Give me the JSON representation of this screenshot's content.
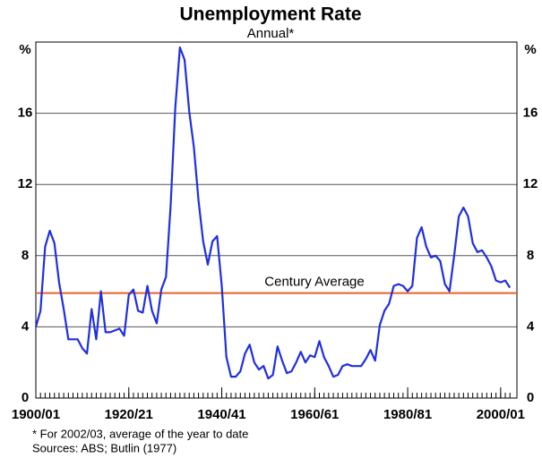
{
  "chart_data": {
    "type": "line",
    "title": "Unemployment Rate",
    "subtitle": "Annual*",
    "y_unit": "%",
    "footnotes": [
      "* For 2002/03, average of the year to date",
      "Sources: ABS; Butlin (1977)"
    ],
    "x": [
      1900,
      1901,
      1902,
      1903,
      1904,
      1905,
      1906,
      1907,
      1908,
      1909,
      1910,
      1911,
      1912,
      1913,
      1914,
      1915,
      1916,
      1917,
      1918,
      1919,
      1920,
      1921,
      1922,
      1923,
      1924,
      1925,
      1926,
      1927,
      1928,
      1929,
      1930,
      1931,
      1932,
      1933,
      1934,
      1935,
      1936,
      1937,
      1938,
      1939,
      1940,
      1941,
      1942,
      1943,
      1944,
      1945,
      1946,
      1947,
      1948,
      1949,
      1950,
      1951,
      1952,
      1953,
      1954,
      1955,
      1956,
      1957,
      1958,
      1959,
      1960,
      1961,
      1962,
      1963,
      1964,
      1965,
      1966,
      1967,
      1968,
      1969,
      1970,
      1971,
      1972,
      1973,
      1974,
      1975,
      1976,
      1977,
      1978,
      1979,
      1980,
      1981,
      1982,
      1983,
      1984,
      1985,
      1986,
      1987,
      1988,
      1989,
      1990,
      1991,
      1992,
      1993,
      1994,
      1995,
      1996,
      1997,
      1998,
      1999,
      2000,
      2001,
      2002
    ],
    "series": [
      {
        "name": "Unemployment rate",
        "color": "#1f2fe0",
        "values": [
          4.0,
          4.9,
          8.5,
          9.4,
          8.7,
          6.5,
          5.0,
          3.3,
          3.3,
          3.3,
          2.8,
          2.5,
          5.0,
          3.3,
          6.0,
          3.7,
          3.7,
          3.8,
          3.9,
          3.5,
          5.8,
          6.1,
          4.9,
          4.8,
          6.3,
          4.9,
          4.2,
          6.1,
          6.8,
          10.8,
          16.3,
          19.7,
          19.0,
          16.1,
          14.1,
          11.1,
          8.8,
          7.5,
          8.8,
          9.1,
          6.3,
          2.3,
          1.2,
          1.2,
          1.5,
          2.5,
          3.0,
          2.0,
          1.6,
          1.8,
          1.1,
          1.3,
          2.9,
          2.1,
          1.4,
          1.5,
          2.0,
          2.6,
          2.0,
          2.4,
          2.3,
          3.2,
          2.3,
          1.8,
          1.2,
          1.3,
          1.8,
          1.9,
          1.8,
          1.8,
          1.8,
          2.2,
          2.7,
          2.1,
          4.1,
          4.9,
          5.3,
          6.3,
          6.4,
          6.3,
          6.0,
          6.3,
          9.0,
          9.6,
          8.5,
          7.9,
          8.0,
          7.7,
          6.4,
          6.0,
          8.0,
          10.2,
          10.7,
          10.2,
          8.7,
          8.2,
          8.3,
          7.9,
          7.4,
          6.6,
          6.5,
          6.6,
          6.2
        ]
      }
    ],
    "reference_line": {
      "value": 5.9,
      "label": "Century Average",
      "color": "#e8622a"
    },
    "xlim": [
      1900,
      2003.5
    ],
    "xticks": [
      {
        "value": 1900,
        "label": "1900/01"
      },
      {
        "value": 1920,
        "label": "1920/21"
      },
      {
        "value": 1940,
        "label": "1940/41"
      },
      {
        "value": 1960,
        "label": "1960/61"
      },
      {
        "value": 1980,
        "label": "1980/81"
      },
      {
        "value": 2000,
        "label": "2000/01"
      }
    ],
    "ylim": [
      0,
      20
    ],
    "yticks": [
      0,
      4,
      8,
      12,
      16
    ],
    "grid": true
  }
}
